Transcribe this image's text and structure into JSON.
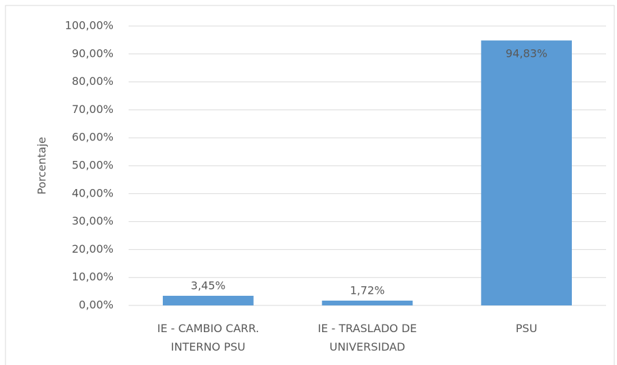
{
  "chart_data": {
    "type": "bar",
    "y_label": "Porcentaje",
    "categories": [
      "IE - CAMBIO CARR. INTERNO PSU",
      "IE - TRASLADO DE UNIVERSIDAD",
      "PSU"
    ],
    "values": [
      3.45,
      1.72,
      94.83
    ],
    "value_labels": [
      "3,45%",
      "1,72%",
      "94,83%"
    ],
    "color": "#5b9bd5",
    "ylim": [
      0,
      100
    ],
    "yticks": [
      {
        "value": 0,
        "label": "0,00%"
      },
      {
        "value": 10,
        "label": "10,00%"
      },
      {
        "value": 20,
        "label": "20,00%"
      },
      {
        "value": 30,
        "label": "30,00%"
      },
      {
        "value": 40,
        "label": "40,00%"
      },
      {
        "value": 50,
        "label": "50,00%"
      },
      {
        "value": 60,
        "label": "60,00%"
      },
      {
        "value": 70,
        "label": "70,00%"
      },
      {
        "value": 80,
        "label": "80,00%"
      },
      {
        "value": 90,
        "label": "90,00%"
      },
      {
        "value": 100,
        "label": "100,00%"
      }
    ],
    "grid": true
  }
}
